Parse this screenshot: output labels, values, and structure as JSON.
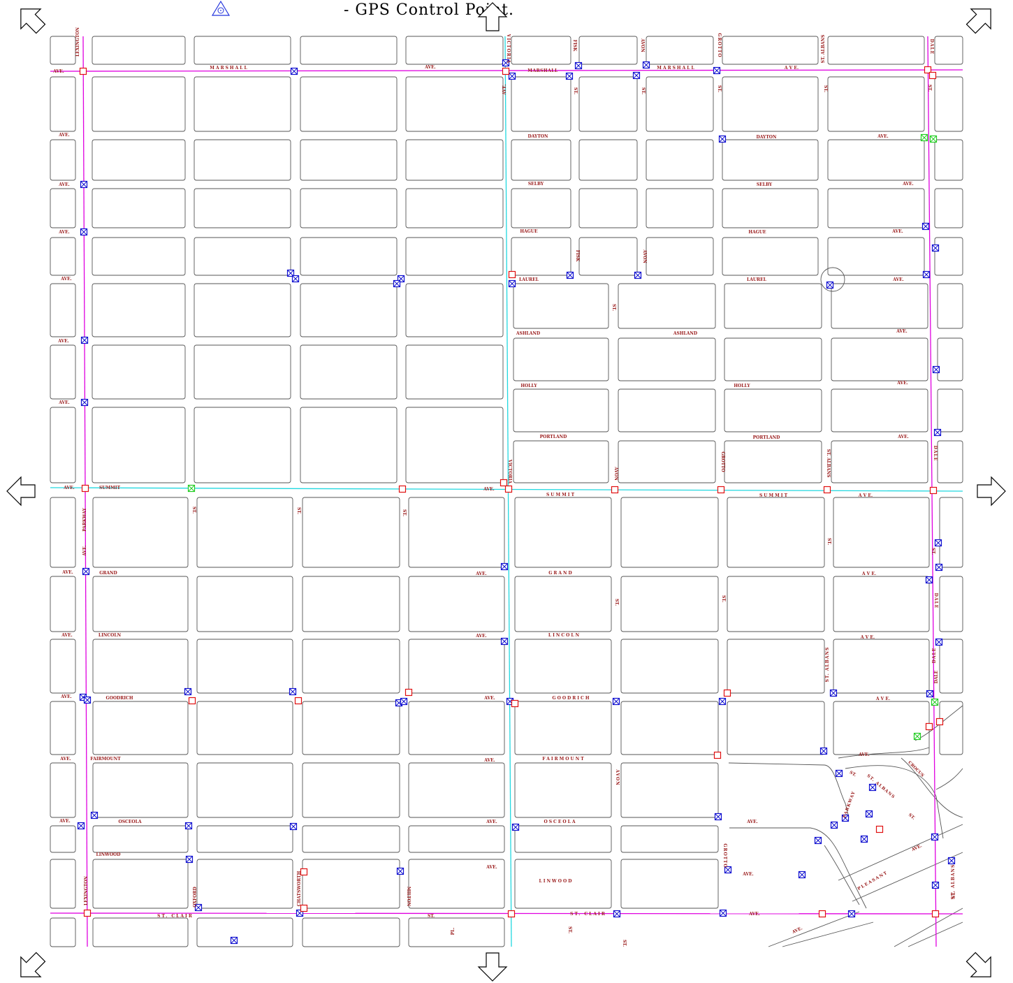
{
  "legend": {
    "text": "- GPS Control Point.",
    "symbol_color": "#2233dd"
  },
  "colors": {
    "major_road": "#e000e0",
    "summit_victoria": "#22d8e0",
    "street_label": "#9a1b1b",
    "gps_blue": "#1010d0",
    "gps_red": "#e01010",
    "gps_green": "#22cc22",
    "block_outline": "#555555"
  },
  "navigation": {
    "pan_up": "pan-up-arrow",
    "pan_down": "pan-down-arrow",
    "pan_left": "pan-left-arrow",
    "pan_right": "pan-right-arrow",
    "pan_up_left": "pan-up-left-arrow",
    "pan_up_right": "pan-up-right-arrow",
    "pan_down_left": "pan-down-left-arrow",
    "pan_down_right": "pan-down-right-arrow"
  },
  "streets": {
    "marshall": "MARSHALL",
    "dayton": "DAYTON",
    "selby": "SELBY",
    "hague": "HAGUE",
    "laurel": "LAUREL",
    "ashland": "ASHLAND",
    "holly": "HOLLY",
    "portland": "PORTLAND",
    "summit": "SUMMIT",
    "grand": "GRAND",
    "lincoln": "LINCOLN",
    "goodrich": "GOODRICH",
    "fairmount": "FAIRMOUNT",
    "osceola": "OSCEOLA",
    "linwood": "LINWOOD",
    "st_clair": "ST. CLAIR",
    "ave": "AVE.",
    "st": "ST.",
    "victoria": "VICTORIA",
    "avon": "AVON",
    "grotto": "GROTTO",
    "st_albans": "ST. ALBANS",
    "fisk": "FISK",
    "dale": "DALE",
    "lexington": "LEXINGTON",
    "parkway": "PARKWAY",
    "chatsworth": "CHATSWORTH",
    "milton": "MILTON",
    "oxford": "OXFORD",
    "pleasant": "PLEASANT",
    "pl": "PL.",
    "crocus": "CROCUS",
    "ave_spaced": "A V E."
  }
}
